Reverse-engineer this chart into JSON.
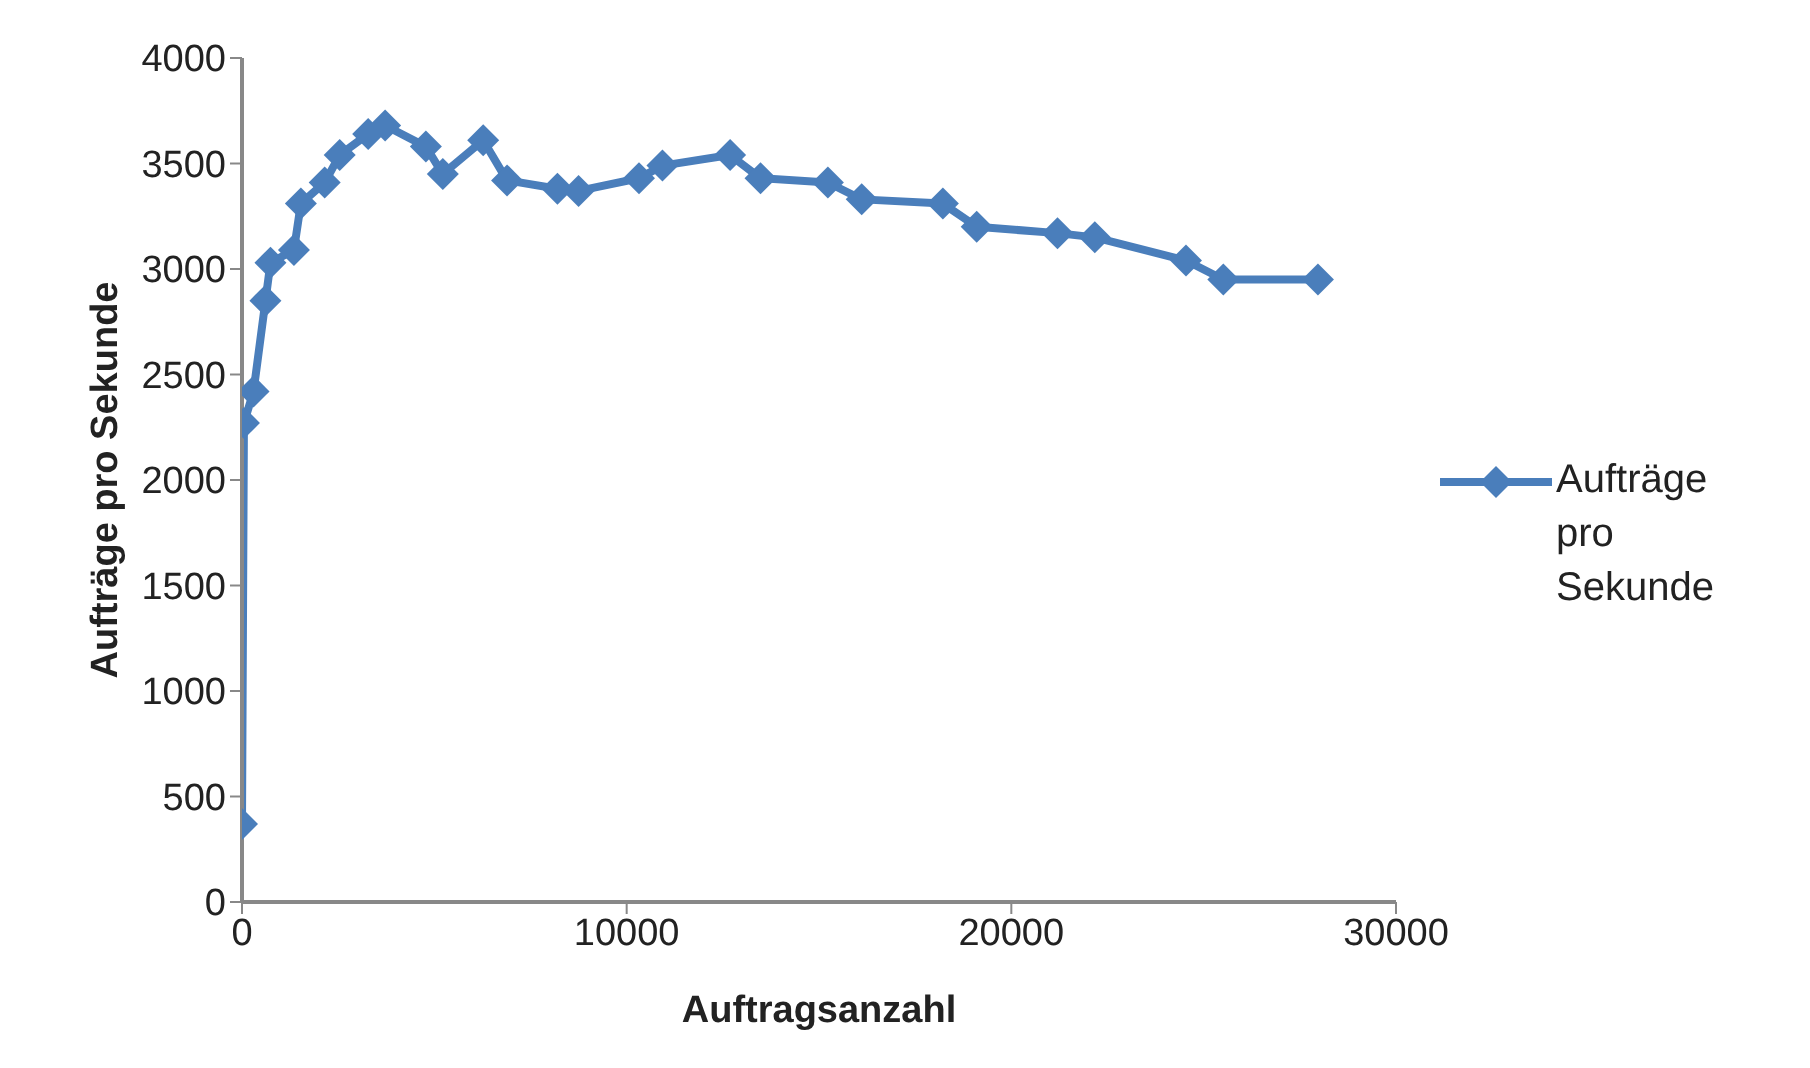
{
  "chart_data": {
    "type": "line",
    "xlabel": "Auftragsanzahl",
    "ylabel": "Aufträge pro Sekunde",
    "x": [
      0,
      50,
      300,
      610,
      740,
      1350,
      1530,
      2150,
      2540,
      3280,
      3720,
      4780,
      5220,
      6270,
      6890,
      8200,
      8750,
      10320,
      10930,
      12690,
      13480,
      15230,
      16110,
      18220,
      19100,
      21200,
      22170,
      24540,
      25510,
      27970
    ],
    "series": [
      {
        "name": "Aufträge pro Sekunde",
        "color": "#4a7ebb",
        "values": [
          370,
          2270,
          2420,
          2850,
          3030,
          3090,
          3310,
          3410,
          3540,
          3640,
          3680,
          3580,
          3450,
          3610,
          3420,
          3380,
          3370,
          3430,
          3490,
          3540,
          3430,
          3410,
          3330,
          3310,
          3200,
          3170,
          3150,
          3040,
          2950,
          2950
        ]
      }
    ],
    "xlim": [
      0,
      30000
    ],
    "xticks": [
      0,
      10000,
      20000,
      30000
    ],
    "ylim": [
      0,
      4000
    ],
    "yticks": [
      0,
      500,
      1000,
      1500,
      2000,
      2500,
      3000,
      3500,
      4000
    ],
    "grid": false,
    "legend": "right",
    "marker": "diamond",
    "line_style": "solid"
  }
}
